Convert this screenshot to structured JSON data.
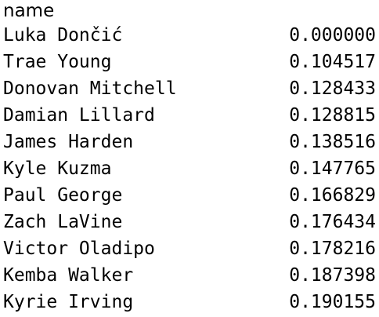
{
  "series_output": {
    "index_name": "name",
    "rows": [
      {
        "name": "Luka Dončić",
        "value": "0.000000"
      },
      {
        "name": "Trae Young",
        "value": "0.104517"
      },
      {
        "name": "Donovan Mitchell",
        "value": "0.128433"
      },
      {
        "name": "Damian Lillard",
        "value": "0.128815"
      },
      {
        "name": "James Harden",
        "value": "0.138516"
      },
      {
        "name": "Kyle Kuzma",
        "value": "0.147765"
      },
      {
        "name": "Paul George",
        "value": "0.166829"
      },
      {
        "name": "Zach LaVine",
        "value": "0.176434"
      },
      {
        "name": "Victor Oladipo",
        "value": "0.178216"
      },
      {
        "name": "Kemba Walker",
        "value": "0.187398"
      },
      {
        "name": "Kyrie Irving",
        "value": "0.190155"
      }
    ]
  }
}
